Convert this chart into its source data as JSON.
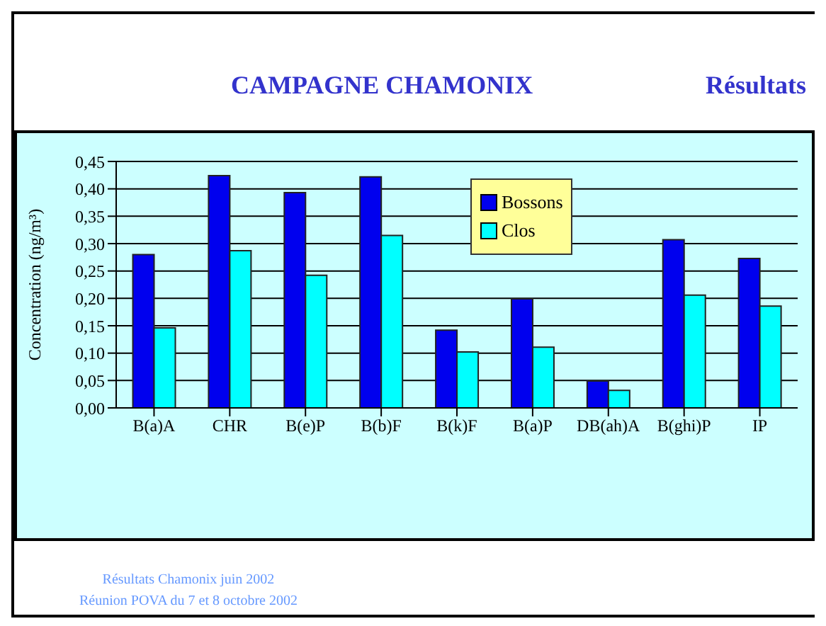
{
  "chart_data": {
    "type": "bar",
    "title": "CAMPAGNE CHAMONIX",
    "subtitle": "Résultats",
    "ylabel": "Concentration (ng/m³)",
    "categories": [
      "B(a)A",
      "CHR",
      "B(e)P",
      "B(b)F",
      "B(k)F",
      "B(a)P",
      "DB(ah)A",
      "B(ghi)P",
      "IP"
    ],
    "series": [
      {
        "name": "Bossons",
        "color": "#0000ee",
        "values": [
          0.28,
          0.424,
          0.393,
          0.422,
          0.142,
          0.199,
          0.049,
          0.307,
          0.273
        ]
      },
      {
        "name": "Clos",
        "color": "#00ffff",
        "values": [
          0.146,
          0.287,
          0.242,
          0.315,
          0.102,
          0.111,
          0.032,
          0.206,
          0.186
        ]
      }
    ],
    "ylim": [
      0,
      0.45
    ],
    "yticks": [
      {
        "value": 0,
        "label": "0,00"
      },
      {
        "value": 0.05,
        "label": "0,05"
      },
      {
        "value": 0.1,
        "label": "0,10"
      },
      {
        "value": 0.15,
        "label": "0,15"
      },
      {
        "value": 0.2,
        "label": "0,20"
      },
      {
        "value": 0.25,
        "label": "0,25"
      },
      {
        "value": 0.3,
        "label": "0,30"
      },
      {
        "value": 0.35,
        "label": "0,35"
      },
      {
        "value": 0.4,
        "label": "0,40"
      },
      {
        "value": 0.45,
        "label": "0,45"
      }
    ],
    "grid": "y",
    "legend": "top",
    "annotations": [
      "Résultats Chamonix juin 2002",
      "Réunion POVA du 7 et 8 octobre 2002"
    ]
  }
}
